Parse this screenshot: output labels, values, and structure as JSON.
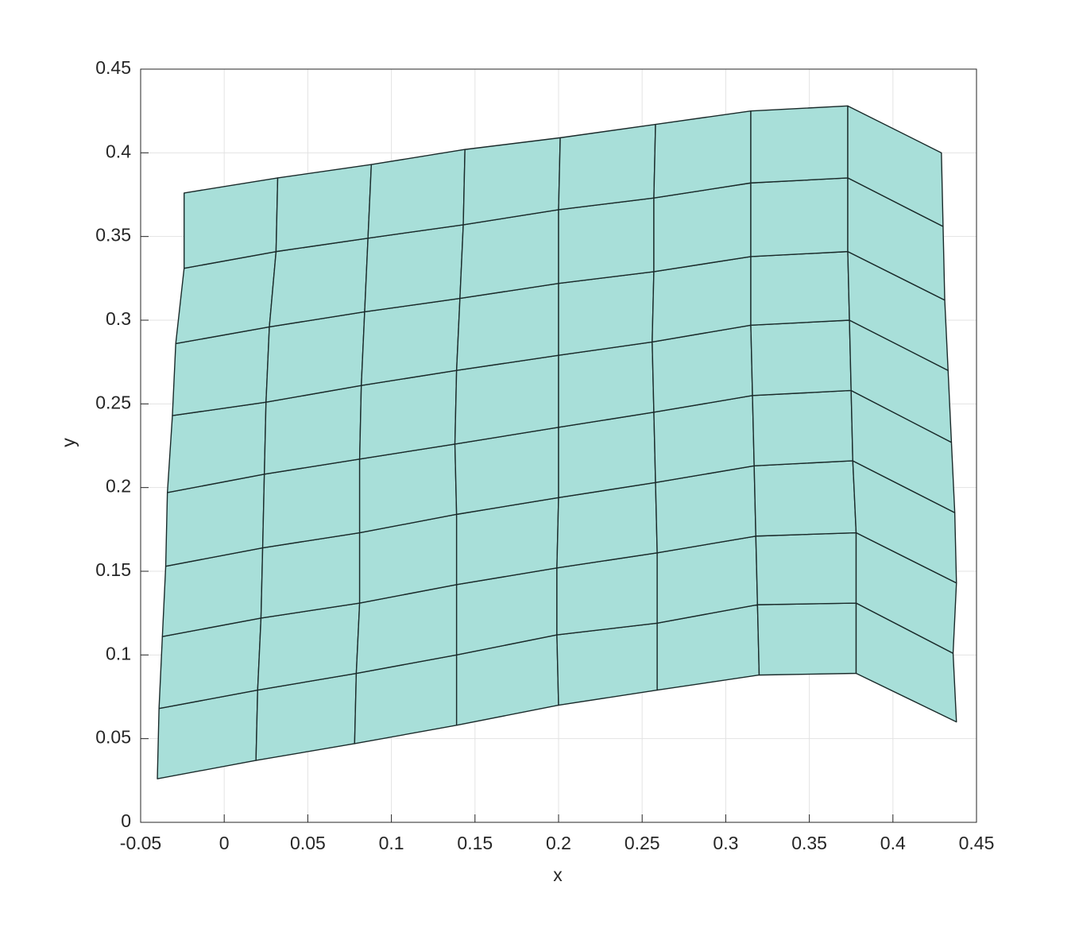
{
  "chart_data": {
    "type": "mesh",
    "xlabel": "x",
    "ylabel": "y",
    "face_color": "#a8dfd9",
    "edge_color": "#1a2a2a",
    "grid": true,
    "xlim": [
      -0.05,
      0.45
    ],
    "ylim": [
      0,
      0.45
    ],
    "xticks": [
      -0.05,
      0,
      0.05,
      0.1,
      0.15,
      0.2,
      0.25,
      0.3,
      0.35,
      0.4,
      0.45
    ],
    "yticks": [
      0,
      0.05,
      0.1,
      0.15,
      0.2,
      0.25,
      0.3,
      0.35,
      0.4,
      0.45
    ],
    "x": [
      [
        -0.04,
        -0.039,
        -0.037,
        -0.035,
        -0.034,
        -0.031,
        -0.029,
        -0.024,
        -0.024
      ],
      [
        0.019,
        0.02,
        0.022,
        0.023,
        0.024,
        0.025,
        0.027,
        0.031,
        0.032
      ],
      [
        0.078,
        0.079,
        0.081,
        0.081,
        0.081,
        0.082,
        0.084,
        0.086,
        0.088
      ],
      [
        0.139,
        0.139,
        0.139,
        0.139,
        0.138,
        0.139,
        0.141,
        0.143,
        0.144
      ],
      [
        0.2,
        0.199,
        0.199,
        0.2,
        0.2,
        0.2,
        0.2,
        0.2,
        0.201
      ],
      [
        0.259,
        0.259,
        0.259,
        0.258,
        0.257,
        0.256,
        0.257,
        0.257,
        0.258
      ],
      [
        0.32,
        0.319,
        0.318,
        0.317,
        0.316,
        0.315,
        0.315,
        0.315,
        0.315
      ],
      [
        0.378,
        0.378,
        0.378,
        0.376,
        0.375,
        0.374,
        0.373,
        0.373,
        0.373
      ],
      [
        0.438,
        0.436,
        0.438,
        0.437,
        0.435,
        0.433,
        0.431,
        0.43,
        0.429
      ]
    ],
    "y": [
      [
        0.026,
        0.068,
        0.111,
        0.153,
        0.197,
        0.243,
        0.286,
        0.331,
        0.376
      ],
      [
        0.037,
        0.079,
        0.122,
        0.164,
        0.208,
        0.251,
        0.296,
        0.341,
        0.385
      ],
      [
        0.047,
        0.089,
        0.131,
        0.173,
        0.217,
        0.261,
        0.305,
        0.349,
        0.393
      ],
      [
        0.058,
        0.1,
        0.142,
        0.184,
        0.226,
        0.27,
        0.313,
        0.357,
        0.402
      ],
      [
        0.07,
        0.112,
        0.152,
        0.194,
        0.236,
        0.279,
        0.322,
        0.366,
        0.409
      ],
      [
        0.079,
        0.119,
        0.161,
        0.203,
        0.245,
        0.287,
        0.329,
        0.373,
        0.417
      ],
      [
        0.088,
        0.13,
        0.171,
        0.213,
        0.255,
        0.297,
        0.338,
        0.382,
        0.425
      ],
      [
        0.089,
        0.131,
        0.173,
        0.216,
        0.258,
        0.3,
        0.341,
        0.385,
        0.428
      ],
      [
        0.06,
        0.101,
        0.143,
        0.185,
        0.227,
        0.27,
        0.312,
        0.356,
        0.4
      ]
    ]
  }
}
